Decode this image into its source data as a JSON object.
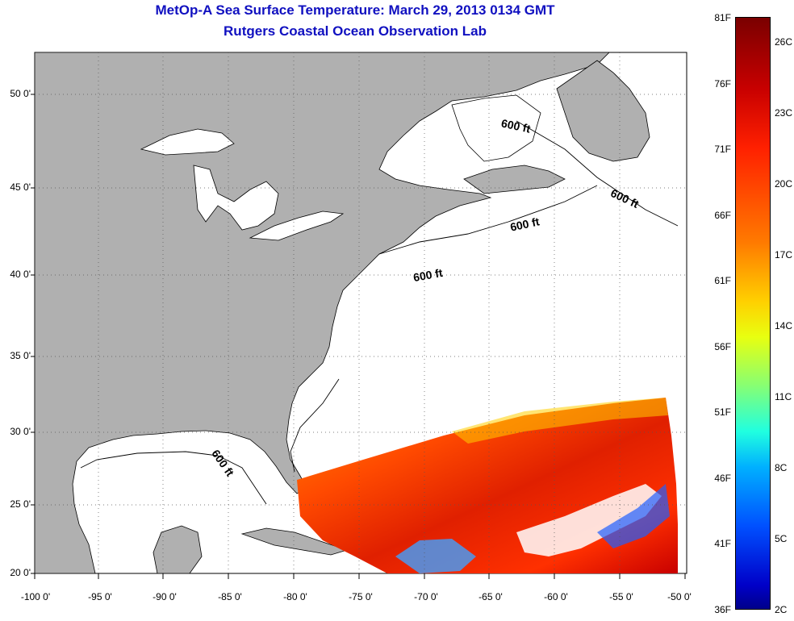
{
  "title": "MetOp-A Sea Surface Temperature:  March 29, 2013 0134 GMT",
  "subtitle": "Rutgers Coastal Ocean Observation Lab",
  "y_axis": {
    "ticks": [
      "50 0'",
      "45 0'",
      "40 0'",
      "35 0'",
      "30 0'",
      "25 0'",
      "20 0'"
    ]
  },
  "x_axis": {
    "ticks": [
      "-100 0'",
      "-95 0'",
      "-90 0'",
      "-85 0'",
      "-80 0'",
      "-75 0'",
      "-70 0'",
      "-65 0'",
      "-60 0'",
      "-55 0'",
      "-50 0'"
    ]
  },
  "colorbar": {
    "fahrenheit": [
      "81F",
      "76F",
      "71F",
      "66F",
      "61F",
      "56F",
      "51F",
      "46F",
      "41F",
      "36F"
    ],
    "celsius": [
      "26C",
      "23C",
      "20C",
      "17C",
      "14C",
      "11C",
      "8C",
      "5C",
      "2C"
    ]
  },
  "contour_labels": [
    "600 ft",
    "600 ft",
    "600 ft",
    "600 ft",
    "600 ft"
  ],
  "colors": {
    "land": "#b0b0b0",
    "ocean": "#ffffff",
    "title": "#1010c0"
  }
}
